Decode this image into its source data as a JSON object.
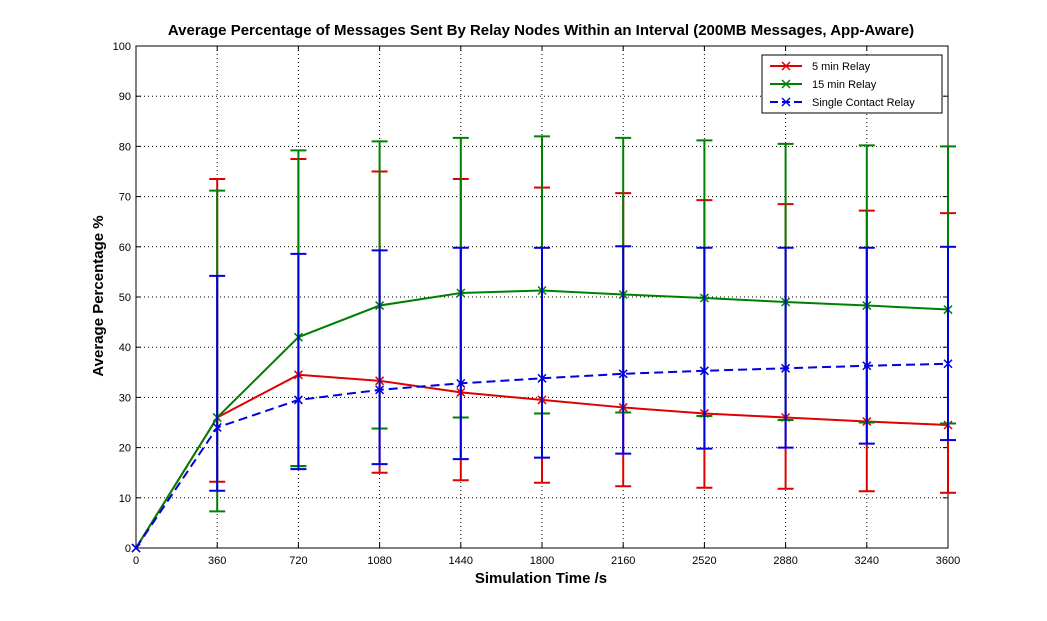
{
  "chart_data": {
    "type": "line",
    "title": "Average Percentage of Messages Sent By Relay Nodes Within an Interval (200MB Messages, App-Aware)",
    "xlabel": "Simulation Time /s",
    "ylabel": "Average Percentage %",
    "xlim": [
      0,
      3600
    ],
    "ylim": [
      0,
      100
    ],
    "xticks": [
      0,
      360,
      720,
      1080,
      1440,
      1800,
      2160,
      2520,
      2880,
      3240,
      3600
    ],
    "yticks": [
      0,
      10,
      20,
      30,
      40,
      50,
      60,
      70,
      80,
      90,
      100
    ],
    "grid": true,
    "legend_position": "top-right",
    "x": [
      0,
      360,
      720,
      1080,
      1440,
      1800,
      2160,
      2520,
      2880,
      3240,
      3600
    ],
    "series": [
      {
        "name": "5 min Relay",
        "color": "#e00000",
        "line_style": "solid",
        "marker": "x",
        "values": [
          0,
          26.0,
          34.5,
          33.3,
          31.0,
          29.5,
          28.0,
          26.8,
          26.0,
          25.2,
          24.5
        ],
        "error_low": [
          0,
          13.2,
          16.3,
          15.0,
          13.5,
          13.0,
          12.3,
          12.0,
          11.8,
          11.3,
          11.0
        ],
        "error_high": [
          0,
          73.5,
          77.5,
          75.0,
          73.5,
          71.8,
          70.7,
          69.3,
          68.5,
          67.2,
          66.7
        ]
      },
      {
        "name": "15 min Relay",
        "color": "#008000",
        "line_style": "solid",
        "marker": "x",
        "values": [
          0,
          26.0,
          42.0,
          48.3,
          50.8,
          51.3,
          50.5,
          49.8,
          49.0,
          48.3,
          47.5
        ],
        "error_low": [
          0,
          7.3,
          16.3,
          23.8,
          26.0,
          26.8,
          27.0,
          26.3,
          25.5,
          25.0,
          24.8
        ],
        "error_high": [
          0,
          71.2,
          79.2,
          81.0,
          81.7,
          82.0,
          81.7,
          81.2,
          80.5,
          80.2,
          80.0
        ]
      },
      {
        "name": "Single Contact Relay",
        "color": "#0000e0",
        "line_style": "dashed",
        "marker": "x",
        "values": [
          0,
          24.0,
          29.5,
          31.5,
          32.8,
          33.8,
          34.7,
          35.3,
          35.8,
          36.3,
          36.7
        ],
        "error_low": [
          0,
          11.4,
          15.7,
          16.7,
          17.7,
          18.0,
          18.8,
          19.8,
          20.0,
          20.8,
          21.5
        ],
        "error_high": [
          0,
          54.2,
          58.6,
          59.3,
          59.8,
          59.8,
          60.1,
          59.8,
          59.8,
          59.8,
          60.0
        ]
      }
    ]
  }
}
